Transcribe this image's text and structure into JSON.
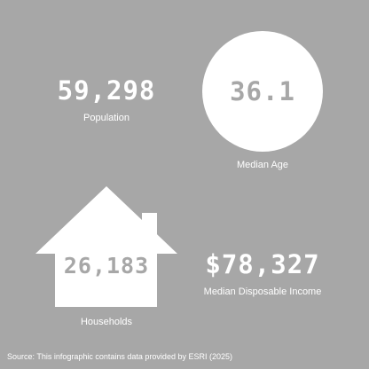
{
  "colors": {
    "background": "#a7a7a7",
    "foreground": "#ffffff"
  },
  "population": {
    "value": "59,298",
    "label": "Population"
  },
  "median_age": {
    "value": "36.1",
    "label": "Median Age"
  },
  "households": {
    "icon": "house-icon",
    "value": "26,183",
    "label": "Households"
  },
  "median_disposable_income": {
    "value": "$78,327",
    "label": "Median Disposable Income"
  },
  "source": "Source:  This infographic contains data provided by ESRI (2025)"
}
